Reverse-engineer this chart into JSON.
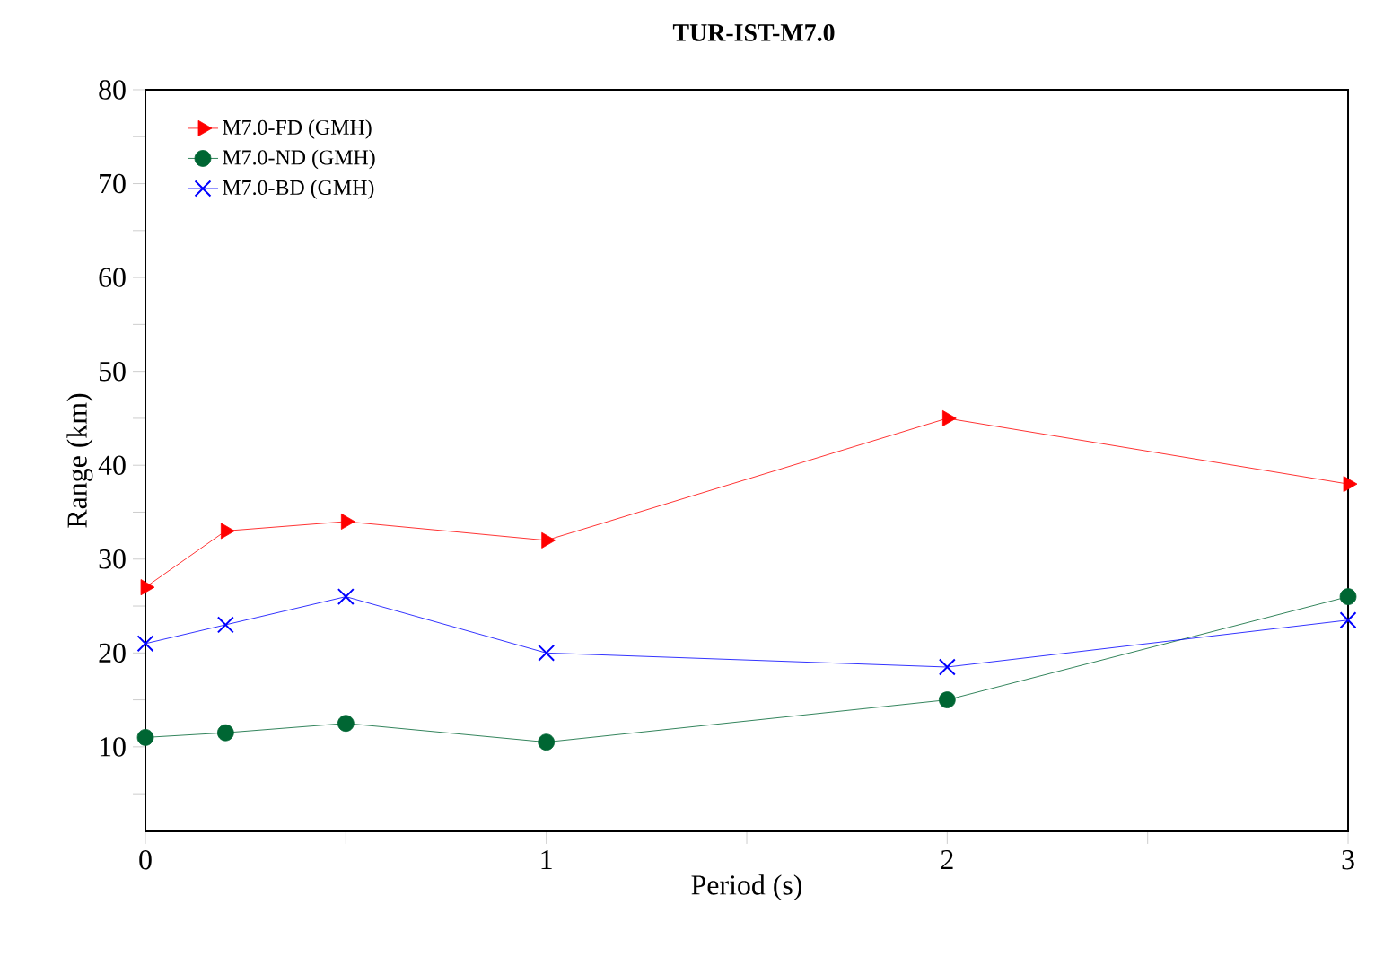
{
  "chart_data": {
    "type": "line",
    "title": "TUR-IST-M7.0",
    "xlabel": "Period (s)",
    "ylabel": "Range (km)",
    "x": [
      0,
      0.2,
      0.5,
      1,
      2,
      3
    ],
    "series": [
      {
        "name": "M7.0-FD (GMH)",
        "color": "#ff0000",
        "marker": "triangle",
        "values": [
          27,
          33,
          34,
          32,
          45,
          38
        ]
      },
      {
        "name": "M7.0-ND (GMH)",
        "color": "#006633",
        "marker": "circle",
        "values": [
          11,
          11.5,
          12.5,
          10.5,
          15,
          26
        ]
      },
      {
        "name": "M7.0-BD (GMH)",
        "color": "#0000ff",
        "marker": "cross",
        "values": [
          21,
          23,
          26,
          20,
          18.5,
          23.5
        ]
      }
    ],
    "xlim": [
      0,
      3
    ],
    "ylim": [
      1,
      80
    ],
    "xticks": [
      0,
      {
        "value": 0.5,
        "label": null
      },
      1,
      {
        "value": 1.5,
        "label": null
      },
      2,
      {
        "value": 2.5,
        "label": null
      },
      3
    ],
    "yticks": [
      {
        "value": 5,
        "label": null
      },
      10,
      {
        "value": 15,
        "label": null
      },
      20,
      {
        "value": 25,
        "label": null
      },
      30,
      {
        "value": 35,
        "label": null
      },
      40,
      {
        "value": 45,
        "label": null
      },
      50,
      {
        "value": 55,
        "label": null
      },
      60,
      {
        "value": 65,
        "label": null
      },
      70,
      {
        "value": 75,
        "label": null
      },
      80
    ],
    "grid": false,
    "legend": "top left",
    "line_style": "solid"
  }
}
